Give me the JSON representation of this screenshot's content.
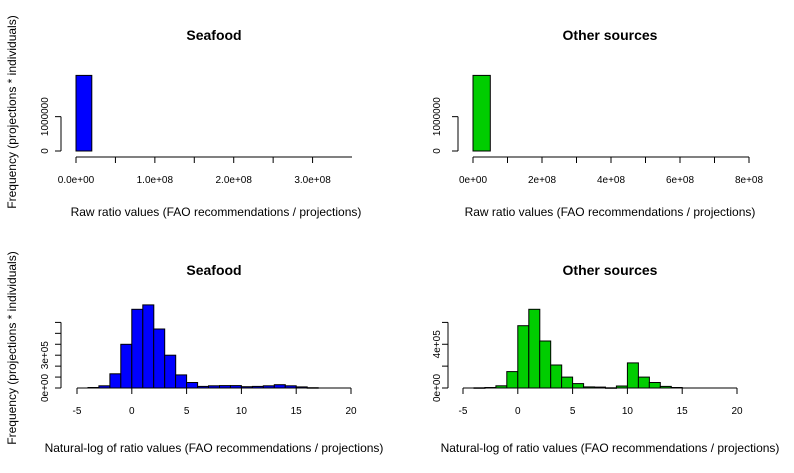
{
  "figure": {
    "y_axis_label": "Frequency (projections * individuals)"
  },
  "chart_data": [
    {
      "type": "bar",
      "title": "Seafood",
      "xlabel": "Raw ratio values (FAO recommendations / projections)",
      "ylabel": "Frequency (projections * individuals)",
      "xlim": [
        0,
        350000000
      ],
      "ylim": [
        0,
        2300000
      ],
      "xticks": [
        0,
        100000000,
        200000000,
        300000000
      ],
      "xtick_labels": [
        "0.0e+00",
        "1.0e+08",
        "2.0e+08",
        "3.0e+08"
      ],
      "yticks": [
        0,
        1000000
      ],
      "ytick_labels": [
        "0",
        "1000000"
      ],
      "bin_width": 20000000,
      "bin_start": 0,
      "values": [
        2200000
      ],
      "color": "#0000ff"
    },
    {
      "type": "bar",
      "title": "Other sources",
      "xlabel": "Raw ratio values (FAO recommendations / projections)",
      "ylabel": "Frequency (projections * individuals)",
      "xlim": [
        0,
        800000000
      ],
      "ylim": [
        0,
        2300000
      ],
      "xticks": [
        0,
        200000000,
        400000000,
        600000000,
        800000000
      ],
      "xtick_labels": [
        "0e+00",
        "2e+08",
        "4e+08",
        "6e+08",
        "8e+08"
      ],
      "yticks": [
        0,
        1000000
      ],
      "ytick_labels": [
        "0",
        "1000000"
      ],
      "bin_width": 50000000,
      "bin_start": 0,
      "values": [
        2200000
      ],
      "color": "#00cd00"
    },
    {
      "type": "bar",
      "title": "Seafood",
      "xlabel": "Natural-log of ratio values (FAO recommendations / projections)",
      "ylabel": "Frequency (projections * individuals)",
      "xlim": [
        -5,
        20
      ],
      "ylim": [
        0,
        750000
      ],
      "xticks": [
        -5,
        0,
        5,
        10,
        15,
        20
      ],
      "xtick_labels": [
        "-5",
        "0",
        "5",
        "10",
        "15",
        "20"
      ],
      "yticks": [
        0,
        300000
      ],
      "ytick_labels": [
        "0e+00",
        "3e+05"
      ],
      "minor_yticks": [
        100000,
        200000,
        400000,
        500000,
        600000
      ],
      "bin_width": 1,
      "bin_start": -4,
      "values": [
        5000,
        20000,
        130000,
        400000,
        720000,
        760000,
        540000,
        300000,
        120000,
        50000,
        15000,
        20000,
        22000,
        22000,
        12000,
        15000,
        20000,
        30000,
        20000,
        10000,
        3000
      ],
      "color": "#0000ff"
    },
    {
      "type": "bar",
      "title": "Other sources",
      "xlabel": "Natural-log of ratio values (FAO recommendations / projections)",
      "ylabel": "Frequency (projections * individuals)",
      "xlim": [
        -5,
        20
      ],
      "ylim": [
        0,
        750000
      ],
      "xticks": [
        -5,
        0,
        5,
        10,
        15,
        20
      ],
      "xtick_labels": [
        "-5",
        "0",
        "5",
        "10",
        "15",
        "20"
      ],
      "yticks": [
        0,
        400000
      ],
      "ytick_labels": [
        "0e+00",
        "4e+05"
      ],
      "minor_yticks": [
        200000,
        600000
      ],
      "bin_width": 1,
      "bin_start": -4,
      "values": [
        2000,
        5000,
        20000,
        150000,
        570000,
        720000,
        430000,
        210000,
        100000,
        40000,
        10000,
        8000,
        2000,
        18000,
        230000,
        100000,
        50000,
        15000,
        5000
      ],
      "color": "#00cd00"
    }
  ]
}
